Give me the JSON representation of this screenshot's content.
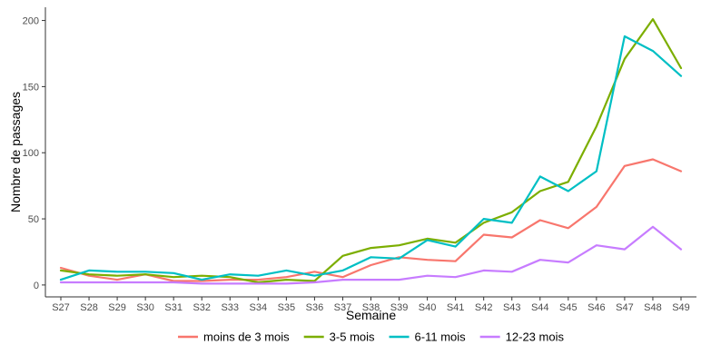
{
  "chart_data": {
    "type": "line",
    "title": "",
    "xlabel": "Semaine",
    "ylabel": "Nombre de passages",
    "ylim": [
      -9,
      210
    ],
    "yticks": [
      0,
      50,
      100,
      150,
      200
    ],
    "grid": false,
    "legend_position": "bottom",
    "categories": [
      "S27",
      "S28",
      "S29",
      "S30",
      "S31",
      "S32",
      "S33",
      "S34",
      "S35",
      "S36",
      "S37",
      "S38",
      "S39",
      "S40",
      "S41",
      "S42",
      "S43",
      "S44",
      "S45",
      "S46",
      "S47",
      "S48",
      "S49"
    ],
    "series": [
      {
        "name": "moins de 3 mois",
        "color": "#F8766D",
        "values": [
          13,
          7,
          4,
          8,
          3,
          3,
          4,
          4,
          6,
          10,
          6,
          15,
          21,
          19,
          18,
          38,
          36,
          49,
          43,
          59,
          90,
          95,
          86
        ]
      },
      {
        "name": "3-5 mois",
        "color": "#7CAE00",
        "values": [
          11,
          8,
          7,
          8,
          6,
          7,
          6,
          2,
          4,
          3,
          22,
          28,
          30,
          35,
          32,
          47,
          55,
          71,
          78,
          120,
          171,
          201,
          164
        ]
      },
      {
        "name": "6-11 mois",
        "color": "#00BFC4",
        "values": [
          4,
          11,
          10,
          10,
          9,
          4,
          8,
          7,
          11,
          7,
          11,
          21,
          20,
          34,
          29,
          50,
          47,
          82,
          71,
          86,
          188,
          177,
          158
        ]
      },
      {
        "name": "12-23 mois",
        "color": "#C77CFF",
        "values": [
          2,
          2,
          2,
          2,
          2,
          1,
          1,
          1,
          1,
          2,
          4,
          4,
          4,
          7,
          6,
          11,
          10,
          19,
          17,
          30,
          27,
          44,
          27
        ]
      }
    ]
  }
}
